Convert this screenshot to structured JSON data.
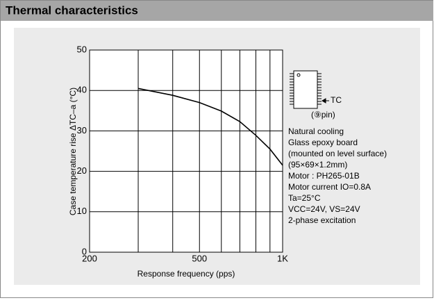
{
  "header": {
    "title": "Thermal characteristics"
  },
  "chart_data": {
    "type": "line",
    "xlabel": "Response frequency (pps)",
    "ylabel": "Case temperature rise ΔTC–a (°C)",
    "x": [
      300,
      400,
      500,
      600,
      700,
      800,
      900,
      1000
    ],
    "values": [
      40.5,
      38.8,
      37,
      34.9,
      32.3,
      28.9,
      25.5,
      21.5
    ],
    "color": "#000000",
    "xscale": "log",
    "xlim": [
      200,
      1000
    ],
    "xticks": [
      200,
      500,
      {
        "value": 1000,
        "label": "1K"
      }
    ],
    "xgrid": [
      300,
      400,
      500,
      600,
      700,
      800,
      900
    ],
    "ylim": [
      0,
      50
    ],
    "yticks": [
      0,
      10,
      20,
      30,
      40,
      50
    ],
    "grid": true,
    "pin_labels": [
      "TC",
      "(⑨pin)"
    ],
    "annotations": [
      "Natural cooling",
      "Glass epoxy board",
      "(mounted on level surface)",
      "(95×69×1.2mm)",
      "Motor : PH265-01B",
      "Motor current IO=0.8A",
      "Ta=25°C",
      "VCC=24V, VS=24V",
      "2-phase excitation"
    ]
  }
}
